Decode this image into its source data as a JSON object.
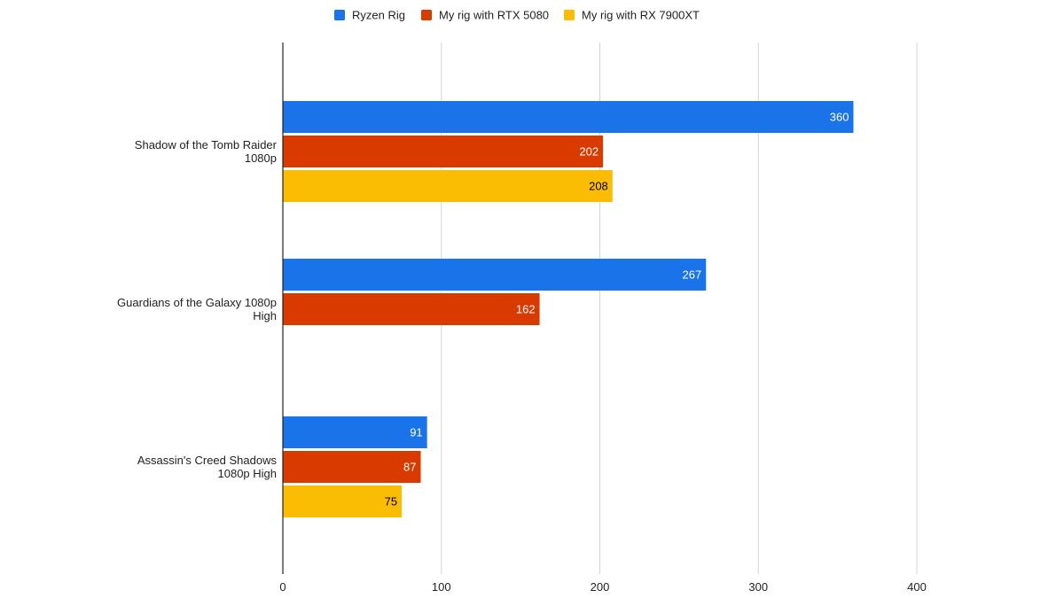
{
  "colors": {
    "Ryzen Rig": "#1a73e8",
    "My rig with RTX 5080": "#d93a00",
    "My rig with RX 7900XT": "#fbbc04",
    "grid": "#d6d6d6",
    "axis": "#222222"
  },
  "chart_data": {
    "type": "bar",
    "orientation": "horizontal",
    "title": "",
    "xlabel": "",
    "ylabel": "",
    "xlim": [
      0,
      400
    ],
    "x_ticks": [
      0,
      100,
      200,
      300,
      400
    ],
    "grid": true,
    "legend_position": "top",
    "categories": [
      [
        "Shadow of the Tomb Raider",
        "1080p"
      ],
      [
        "Guardians of the Galaxy 1080p",
        "High"
      ],
      [
        "Assassin's Creed Shadows",
        "1080p High"
      ]
    ],
    "series": [
      {
        "name": "Ryzen Rig",
        "values": [
          360,
          267,
          91
        ],
        "label_color": "#ffffff"
      },
      {
        "name": "My rig with RTX 5080",
        "values": [
          202,
          162,
          87
        ],
        "label_color": "#ffffff"
      },
      {
        "name": "My rig with RX 7900XT",
        "values": [
          208,
          null,
          75
        ],
        "label_color": "#000000"
      }
    ]
  }
}
